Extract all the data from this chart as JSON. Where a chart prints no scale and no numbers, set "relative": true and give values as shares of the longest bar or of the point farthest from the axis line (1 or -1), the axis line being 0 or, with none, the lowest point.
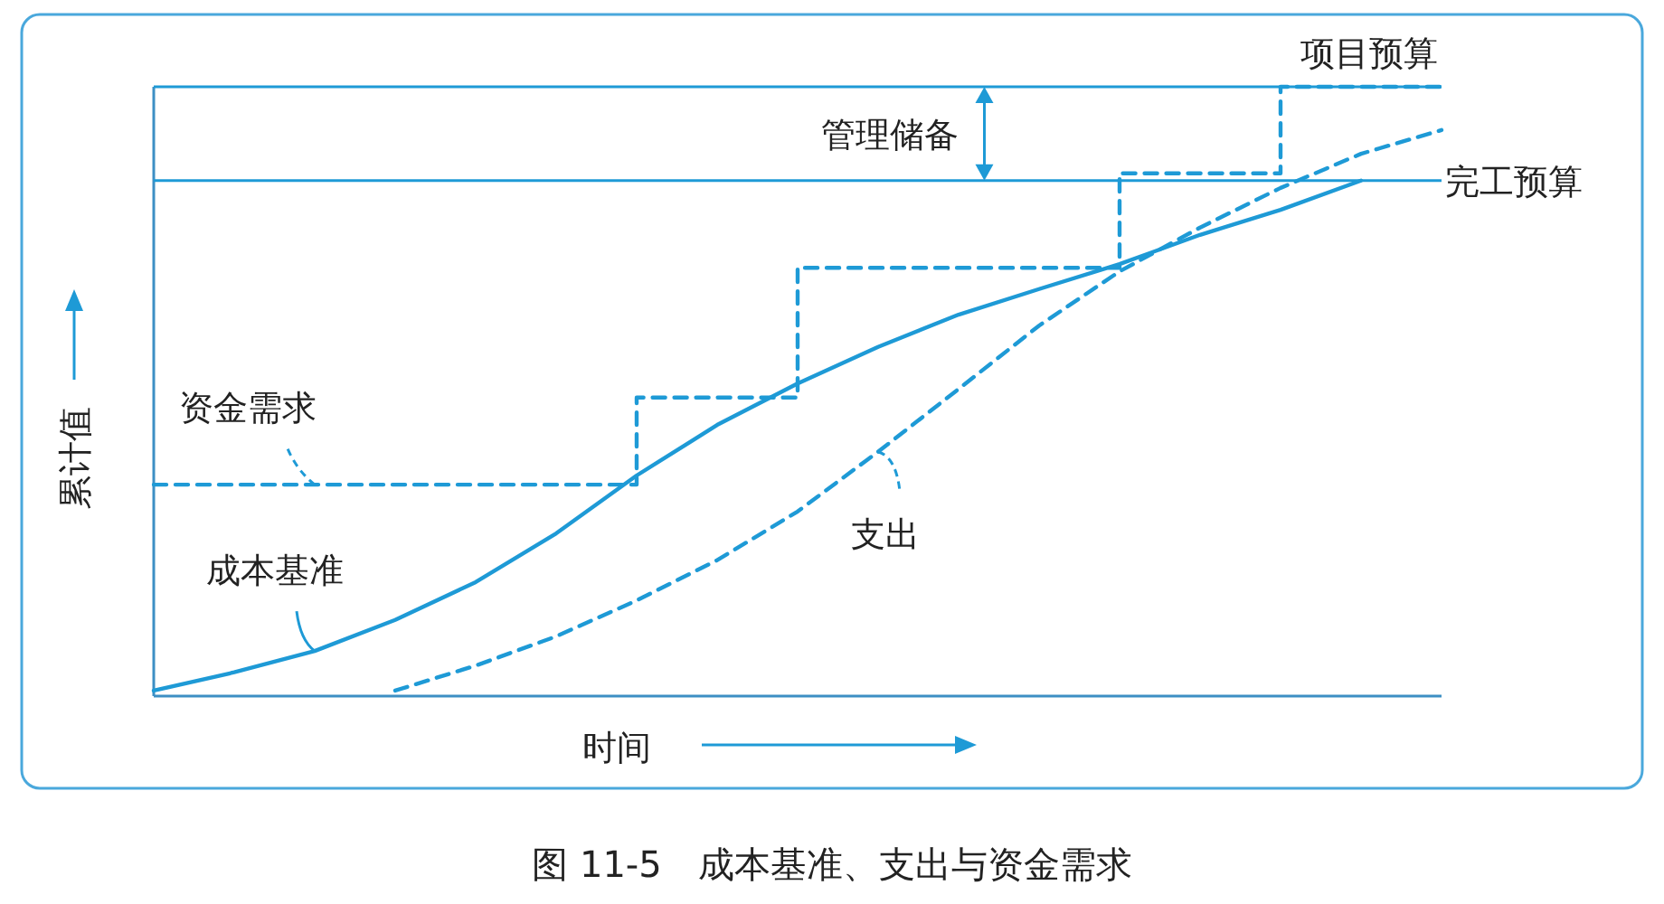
{
  "chart_data": {
    "type": "line",
    "title": "图 11-5　成本基准、支出与资金需求",
    "xlabel": "时间",
    "ylabel": "累计值",
    "relative": true,
    "categories": [
      null,
      null,
      null,
      null,
      null,
      null,
      null,
      null,
      null,
      null,
      null,
      null,
      null,
      null,
      null,
      null,
      null
    ],
    "series": [
      {
        "name": "资金需求",
        "type": "step",
        "color": "#1e9ad6",
        "line_style": "dashed",
        "values": [
          0.347,
          0.347,
          0.347,
          0.347,
          0.347,
          0.347,
          0.49,
          0.49,
          0.703,
          0.703,
          0.703,
          0.703,
          0.858,
          0.858,
          1,
          1,
          1
        ]
      },
      {
        "name": "成本基准",
        "type": "line",
        "color": "#1e9ad6",
        "line_style": "solid",
        "values": [
          0.009,
          0.039,
          0.074,
          0.125,
          0.187,
          0.267,
          0.362,
          0.445,
          0.513,
          0.573,
          0.626,
          0.668,
          0.709,
          0.757,
          0.798,
          0.846,
          null
        ]
      },
      {
        "name": "支出",
        "type": "line",
        "color": "#1e9ad6",
        "line_style": "dashed",
        "values": [
          null,
          null,
          null,
          0.009,
          0.05,
          0.098,
          0.157,
          0.223,
          0.303,
          0.401,
          0.504,
          0.608,
          0.697,
          0.769,
          0.834,
          0.89,
          0.929
        ]
      }
    ],
    "ref_lines": [
      {
        "axis": "y",
        "value": 0.846,
        "label": "完工预算",
        "color": "#1e9ad6"
      },
      {
        "axis": "y",
        "value": 1,
        "label": "项目预算",
        "color": "#1e9ad6"
      }
    ],
    "annotations": [
      "管理储备"
    ]
  }
}
